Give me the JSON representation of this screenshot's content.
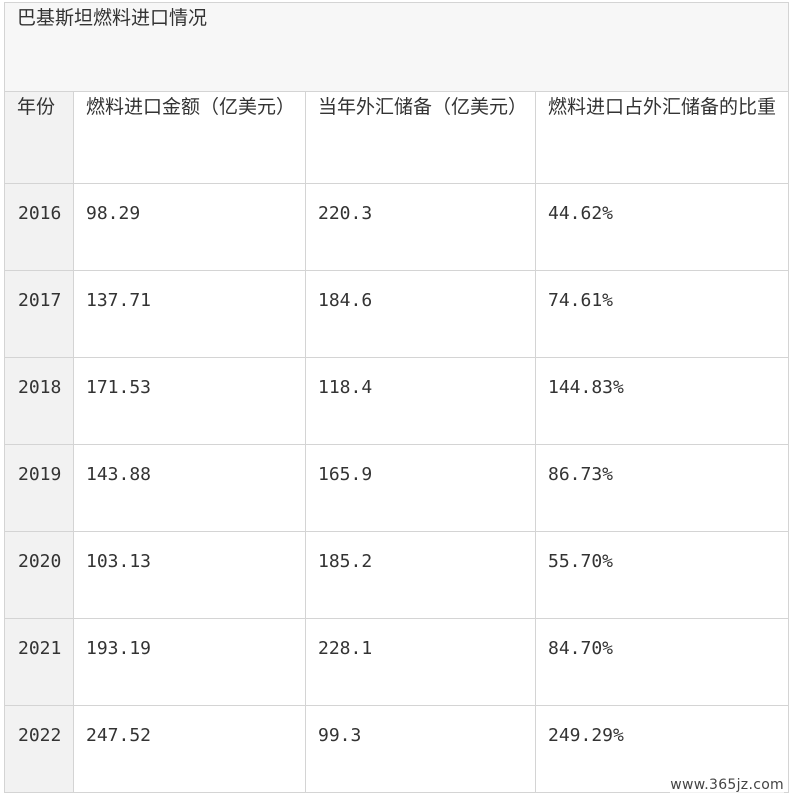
{
  "table": {
    "title": "巴基斯坦燃料进口情况",
    "headers": [
      "年份",
      "燃料进口金额（亿美元）",
      "当年外汇储备（亿美元）",
      "燃料进口占外汇储备的比重"
    ],
    "rows": [
      [
        "2016",
        "98.29",
        "220.3",
        "44.62%"
      ],
      [
        "2017",
        "137.71",
        "184.6",
        "74.61%"
      ],
      [
        "2018",
        "171.53",
        "118.4",
        "144.83%"
      ],
      [
        "2019",
        "143.88",
        "165.9",
        "86.73%"
      ],
      [
        "2020",
        "103.13",
        "185.2",
        "55.70%"
      ],
      [
        "2021",
        "193.19",
        "228.1",
        "84.70%"
      ],
      [
        "2022",
        "247.52",
        "99.3",
        "249.29%"
      ]
    ]
  },
  "watermark": "www.365jz.com"
}
